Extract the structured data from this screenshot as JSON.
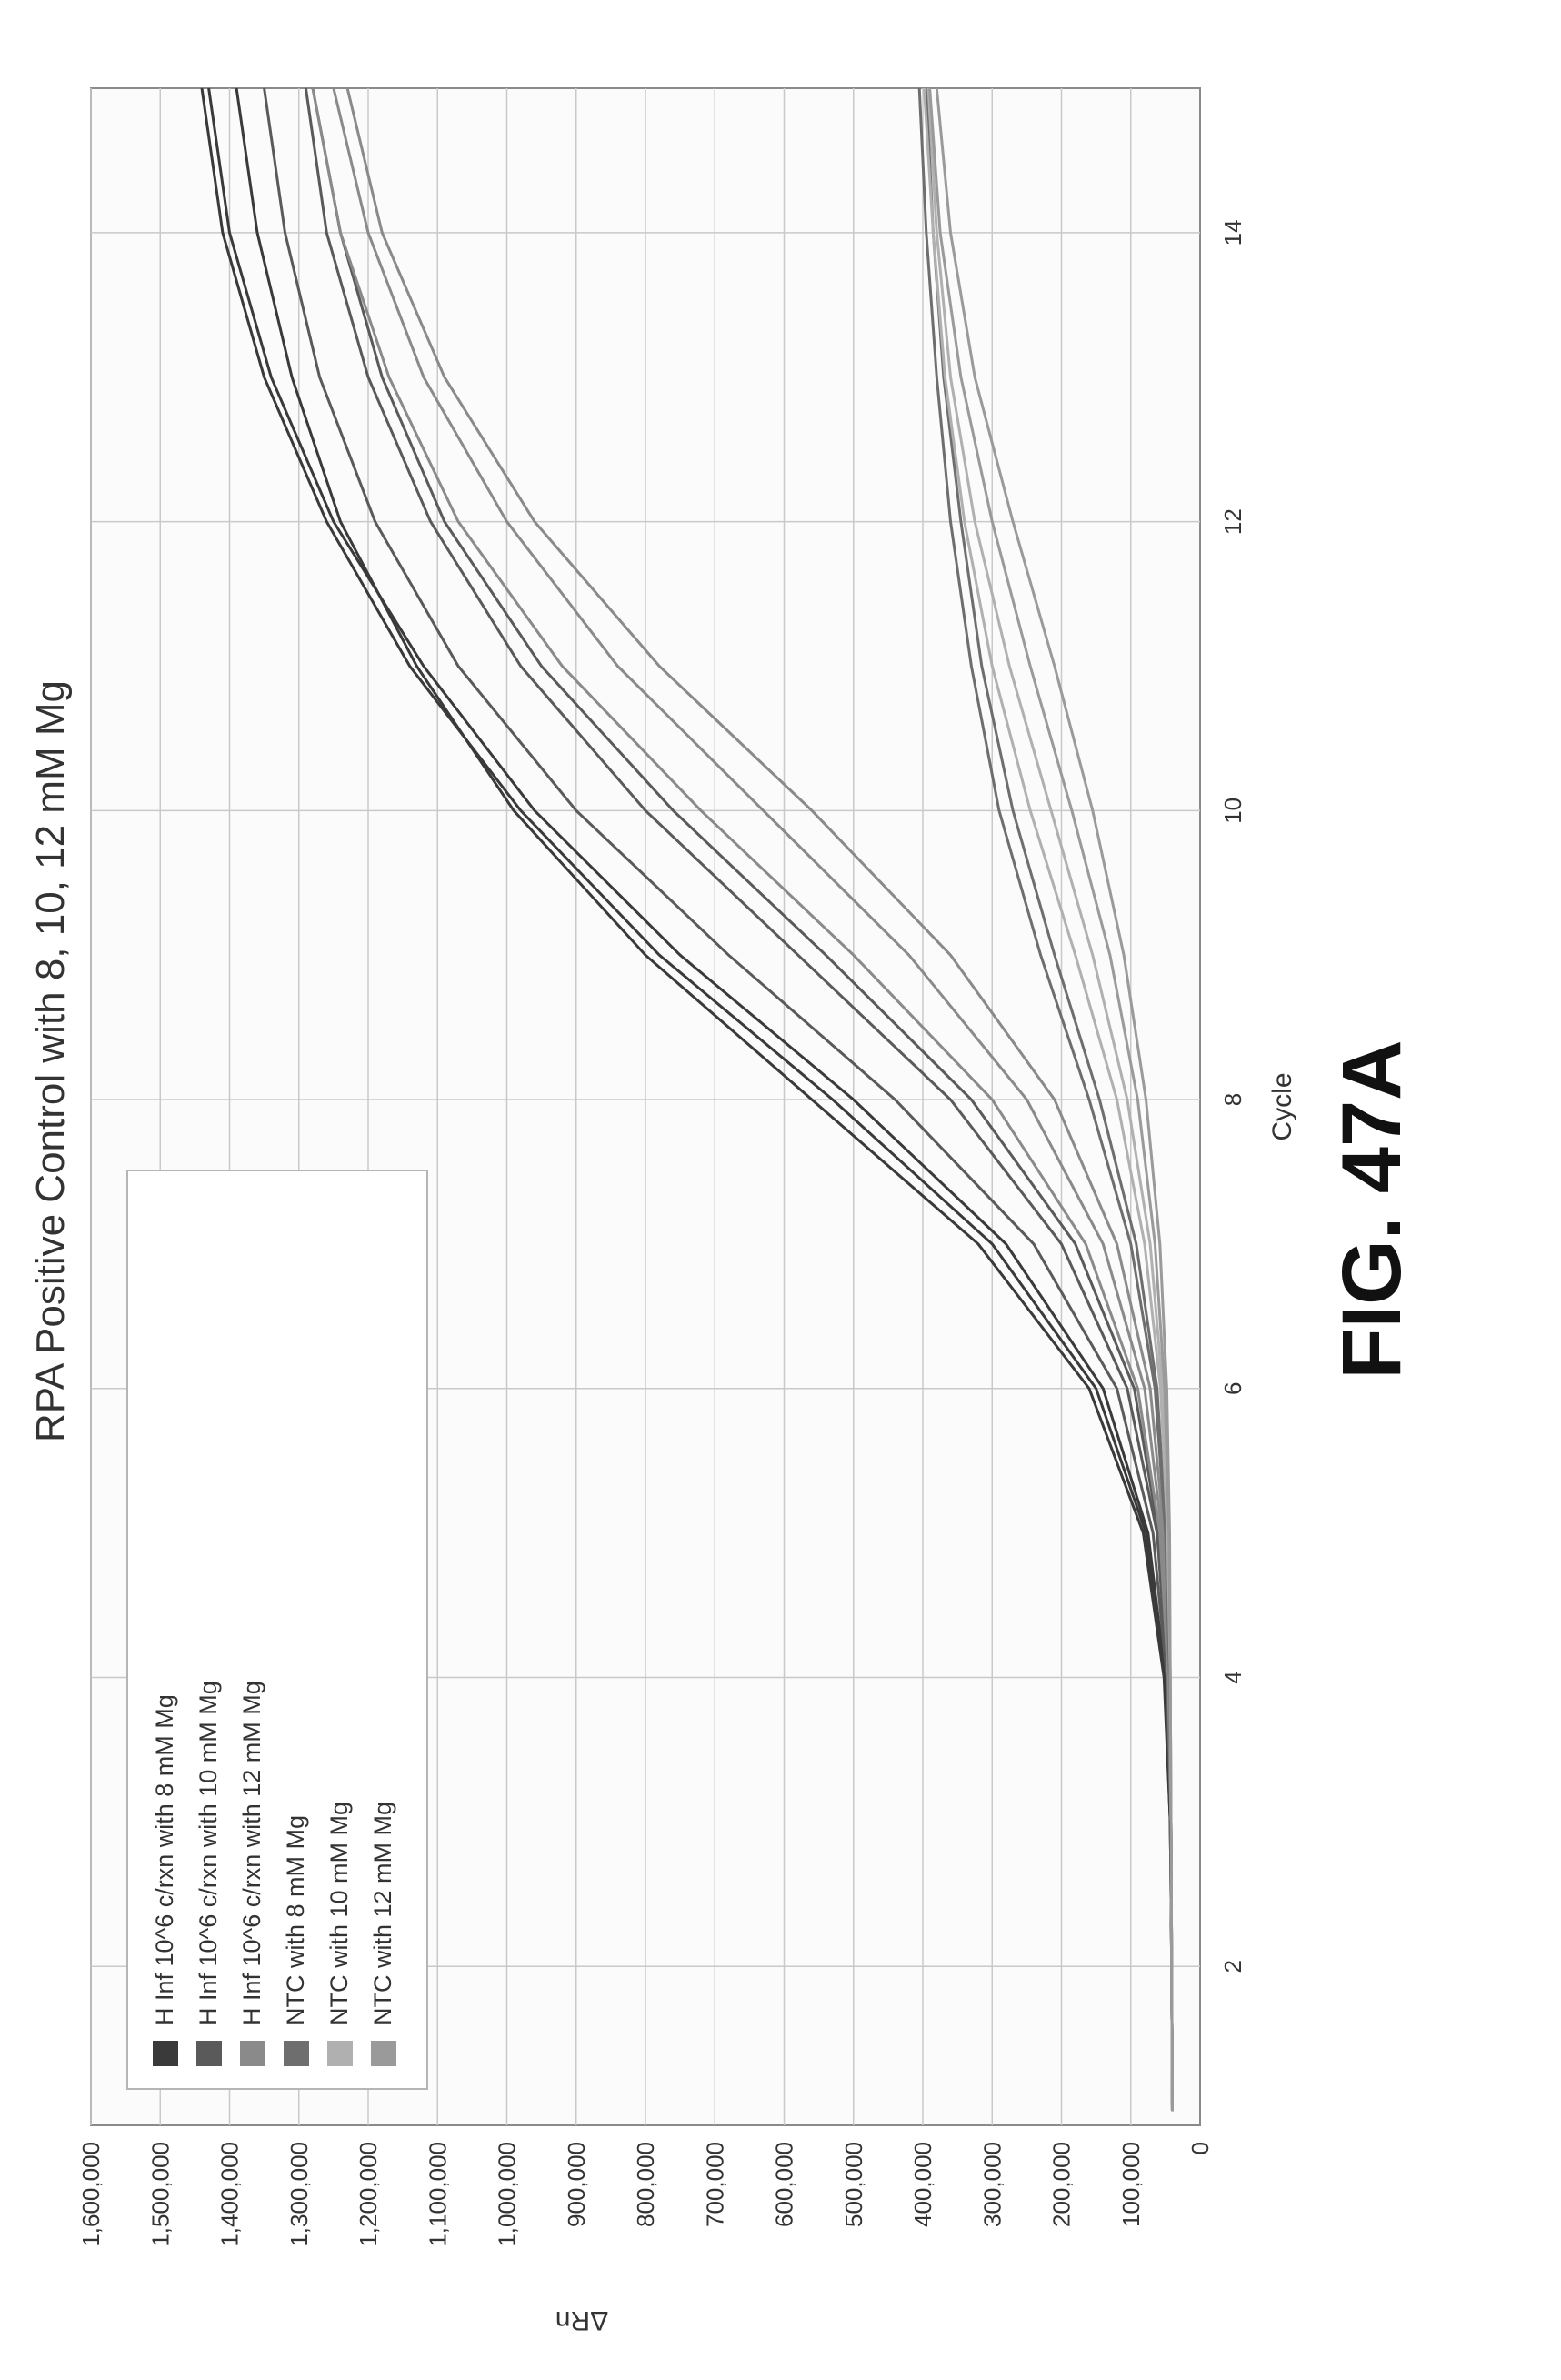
{
  "chart_data": {
    "type": "line",
    "title": "RPA Positive Control with 8, 10, 12 mM Mg",
    "xlabel": "Cycle",
    "ylabel": "ΔRn",
    "xlim": [
      0.9,
      15
    ],
    "ylim": [
      0,
      1600000
    ],
    "x_ticks": [
      2,
      4,
      6,
      8,
      10,
      12,
      14
    ],
    "y_ticks": [
      0,
      100000,
      200000,
      300000,
      400000,
      500000,
      600000,
      700000,
      800000,
      900000,
      1000000,
      1100000,
      1200000,
      1300000,
      1400000,
      1500000,
      1600000
    ],
    "x_tick_labels": [
      "2",
      "4",
      "6",
      "8",
      "10",
      "12",
      "14"
    ],
    "y_tick_labels": [
      "0",
      "100,000",
      "200,000",
      "300,000",
      "400,000",
      "500,000",
      "600,000",
      "700,000",
      "800,000",
      "900,000",
      "1,000,000",
      "1,100,000",
      "1,200,000",
      "1,300,000",
      "1,400,000",
      "1,500,000",
      "1,600,000"
    ],
    "grid": true,
    "legend_position": "top-left",
    "orientation": "rotated-90-counterclockwise",
    "x": [
      1,
      2,
      3,
      4,
      5,
      6,
      7,
      8,
      9,
      10,
      11,
      12,
      13,
      14,
      15
    ],
    "series": [
      {
        "name": "H Inf 10^6 c/rxn with 8 mM Mg",
        "color": "#3a3a3a",
        "curves": [
          [
            40000,
            41000,
            43000,
            50000,
            75000,
            140000,
            280000,
            500000,
            750000,
            960000,
            1120000,
            1250000,
            1340000,
            1400000,
            1430000
          ],
          [
            40000,
            41000,
            43000,
            52000,
            82000,
            160000,
            320000,
            560000,
            800000,
            990000,
            1130000,
            1240000,
            1310000,
            1360000,
            1390000
          ],
          [
            40000,
            41000,
            43000,
            51000,
            78000,
            150000,
            300000,
            530000,
            780000,
            980000,
            1140000,
            1260000,
            1350000,
            1410000,
            1440000
          ]
        ]
      },
      {
        "name": "H Inf 10^6 c/rxn with 10 mM Mg",
        "color": "#5a5a5a",
        "curves": [
          [
            40000,
            41000,
            42000,
            48000,
            68000,
            120000,
            240000,
            440000,
            680000,
            900000,
            1070000,
            1190000,
            1270000,
            1320000,
            1350000
          ],
          [
            40000,
            41000,
            42000,
            47000,
            62000,
            105000,
            200000,
            360000,
            580000,
            800000,
            980000,
            1110000,
            1200000,
            1260000,
            1290000
          ],
          [
            40000,
            41000,
            42000,
            47000,
            60000,
            95000,
            180000,
            330000,
            540000,
            760000,
            950000,
            1090000,
            1180000,
            1240000,
            1280000
          ]
        ]
      },
      {
        "name": "H Inf 10^6 c/rxn with 12 mM Mg",
        "color": "#8a8a8a",
        "curves": [
          [
            40000,
            41000,
            42000,
            46000,
            58000,
            90000,
            165000,
            300000,
            500000,
            720000,
            920000,
            1070000,
            1170000,
            1240000,
            1280000
          ],
          [
            40000,
            41000,
            42000,
            45000,
            55000,
            80000,
            140000,
            250000,
            420000,
            630000,
            840000,
            1000000,
            1120000,
            1200000,
            1250000
          ],
          [
            40000,
            41000,
            42000,
            44000,
            52000,
            72000,
            120000,
            210000,
            360000,
            560000,
            780000,
            960000,
            1090000,
            1180000,
            1230000
          ]
        ]
      },
      {
        "name": "NTC with 8 mM Mg",
        "color": "#6e6e6e",
        "curves": [
          [
            40000,
            41000,
            42000,
            44000,
            50000,
            65000,
            100000,
            160000,
            230000,
            290000,
            330000,
            360000,
            380000,
            395000,
            405000
          ],
          [
            40000,
            41000,
            42000,
            44000,
            49000,
            62000,
            92000,
            145000,
            210000,
            270000,
            315000,
            345000,
            370000,
            385000,
            395000
          ]
        ]
      },
      {
        "name": "NTC with 10 mM Mg",
        "color": "#b0b0b0",
        "curves": [
          [
            40000,
            41000,
            42000,
            43000,
            47000,
            57000,
            80000,
            120000,
            180000,
            245000,
            300000,
            340000,
            368000,
            385000,
            398000
          ],
          [
            40000,
            41000,
            42000,
            43000,
            46000,
            54000,
            72000,
            105000,
            155000,
            215000,
            275000,
            325000,
            360000,
            380000,
            392000
          ]
        ]
      },
      {
        "name": "NTC with 12 mM Mg",
        "color": "#9a9a9a",
        "curves": [
          [
            40000,
            41000,
            42000,
            43000,
            45000,
            51000,
            65000,
            90000,
            130000,
            185000,
            245000,
            300000,
            345000,
            375000,
            390000
          ],
          [
            40000,
            41000,
            42000,
            43000,
            44000,
            48000,
            58000,
            78000,
            110000,
            155000,
            210000,
            270000,
            325000,
            360000,
            380000
          ]
        ]
      }
    ]
  },
  "figure_label": "FIG. 47A"
}
